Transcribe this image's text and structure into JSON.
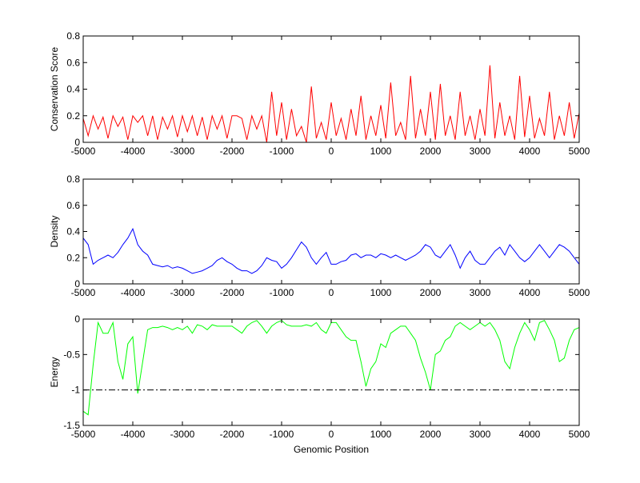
{
  "chart_data": [
    {
      "type": "line",
      "ylabel": "Conservation Score",
      "xlim": [
        -5000,
        5000
      ],
      "ylim": [
        0,
        0.8
      ],
      "xticks": [
        "-5000",
        "-4000",
        "-3000",
        "-2000",
        "-1000",
        "0",
        "1000",
        "2000",
        "3000",
        "4000",
        "5000"
      ],
      "yticks": [
        "0",
        "0.2",
        "0.4",
        "0.6",
        "0.8"
      ],
      "ytick_values": [
        0,
        0.2,
        0.4,
        0.6,
        0.8
      ],
      "color": "#ff0000",
      "x_start": -5000,
      "x_step": 100,
      "values": [
        0.18,
        0.05,
        0.2,
        0.1,
        0.19,
        0.03,
        0.2,
        0.12,
        0.19,
        0.02,
        0.2,
        0.15,
        0.2,
        0.05,
        0.2,
        0.02,
        0.19,
        0.1,
        0.2,
        0.04,
        0.2,
        0.08,
        0.2,
        0.05,
        0.19,
        0.02,
        0.2,
        0.1,
        0.2,
        0.03,
        0.2,
        0.2,
        0.18,
        0.02,
        0.2,
        0.1,
        0.2,
        0.0,
        0.38,
        0.05,
        0.3,
        0.02,
        0.25,
        0.05,
        0.12,
        0.0,
        0.42,
        0.03,
        0.15,
        0.02,
        0.3,
        0.05,
        0.18,
        0.02,
        0.25,
        0.05,
        0.35,
        0.02,
        0.2,
        0.05,
        0.28,
        0.03,
        0.45,
        0.05,
        0.15,
        0.02,
        0.5,
        0.03,
        0.25,
        0.05,
        0.38,
        0.02,
        0.44,
        0.05,
        0.2,
        0.02,
        0.38,
        0.05,
        0.2,
        0.02,
        0.25,
        0.05,
        0.58,
        0.03,
        0.3,
        0.05,
        0.2,
        0.02,
        0.5,
        0.04,
        0.35,
        0.03,
        0.18,
        0.05,
        0.38,
        0.02,
        0.2,
        0.05,
        0.3,
        0.03,
        0.22
      ]
    },
    {
      "type": "line",
      "ylabel": "Density",
      "xlim": [
        -5000,
        5000
      ],
      "ylim": [
        0,
        0.8
      ],
      "xticks": [
        "-5000",
        "-4000",
        "-3000",
        "-2000",
        "-1000",
        "0",
        "1000",
        "2000",
        "3000",
        "4000",
        "5000"
      ],
      "yticks": [
        "0",
        "0.2",
        "0.4",
        "0.6",
        "0.8"
      ],
      "ytick_values": [
        0,
        0.2,
        0.4,
        0.6,
        0.8
      ],
      "color": "#0000ff",
      "x_start": -5000,
      "x_step": 100,
      "values": [
        0.35,
        0.3,
        0.15,
        0.18,
        0.2,
        0.22,
        0.2,
        0.24,
        0.3,
        0.35,
        0.42,
        0.3,
        0.25,
        0.22,
        0.15,
        0.14,
        0.13,
        0.14,
        0.12,
        0.13,
        0.12,
        0.1,
        0.08,
        0.09,
        0.1,
        0.12,
        0.14,
        0.18,
        0.2,
        0.17,
        0.15,
        0.12,
        0.1,
        0.1,
        0.08,
        0.1,
        0.14,
        0.2,
        0.18,
        0.17,
        0.12,
        0.15,
        0.2,
        0.26,
        0.32,
        0.28,
        0.2,
        0.15,
        0.2,
        0.24,
        0.15,
        0.15,
        0.17,
        0.18,
        0.22,
        0.23,
        0.2,
        0.22,
        0.22,
        0.2,
        0.23,
        0.22,
        0.2,
        0.22,
        0.2,
        0.18,
        0.2,
        0.22,
        0.25,
        0.3,
        0.28,
        0.22,
        0.2,
        0.25,
        0.3,
        0.22,
        0.12,
        0.2,
        0.25,
        0.18,
        0.15,
        0.15,
        0.2,
        0.25,
        0.28,
        0.22,
        0.3,
        0.25,
        0.2,
        0.17,
        0.2,
        0.25,
        0.3,
        0.25,
        0.2,
        0.25,
        0.3,
        0.28,
        0.25,
        0.2,
        0.15
      ]
    },
    {
      "type": "line",
      "ylabel": "Energy",
      "xlabel": "Genomic Position",
      "xlim": [
        -5000,
        5000
      ],
      "ylim": [
        -1.5,
        0
      ],
      "xticks": [
        "-5000",
        "-4000",
        "-3000",
        "-2000",
        "-1000",
        "0",
        "1000",
        "2000",
        "3000",
        "4000",
        "5000"
      ],
      "yticks": [
        "-1.5",
        "-1",
        "-0.5",
        "0"
      ],
      "ytick_values": [
        -1.5,
        -1,
        -0.5,
        0
      ],
      "color": "#00ff00",
      "threshold": -1,
      "x_start": -5000,
      "x_step": 100,
      "values": [
        -1.3,
        -1.35,
        -0.65,
        -0.05,
        -0.2,
        -0.2,
        -0.05,
        -0.6,
        -0.85,
        -0.35,
        -0.25,
        -1.05,
        -0.6,
        -0.15,
        -0.12,
        -0.12,
        -0.1,
        -0.12,
        -0.15,
        -0.12,
        -0.15,
        -0.1,
        -0.2,
        -0.08,
        -0.1,
        -0.15,
        -0.08,
        -0.1,
        -0.1,
        -0.1,
        -0.1,
        -0.15,
        -0.2,
        -0.1,
        -0.05,
        -0.02,
        -0.1,
        -0.2,
        -0.1,
        -0.05,
        -0.02,
        -0.08,
        -0.1,
        -0.1,
        -0.1,
        -0.08,
        -0.1,
        -0.05,
        -0.15,
        -0.2,
        -0.05,
        -0.05,
        -0.15,
        -0.25,
        -0.3,
        -0.3,
        -0.6,
        -0.95,
        -0.7,
        -0.6,
        -0.35,
        -0.4,
        -0.2,
        -0.15,
        -0.1,
        -0.1,
        -0.2,
        -0.3,
        -0.55,
        -0.75,
        -1.0,
        -0.5,
        -0.45,
        -0.3,
        -0.25,
        -0.1,
        -0.05,
        -0.1,
        -0.15,
        -0.1,
        -0.05,
        -0.1,
        -0.05,
        -0.15,
        -0.3,
        -0.6,
        -0.7,
        -0.4,
        -0.2,
        -0.05,
        -0.15,
        -0.3,
        -0.05,
        -0.02,
        -0.15,
        -0.3,
        -0.6,
        -0.55,
        -0.3,
        -0.15,
        -0.12
      ]
    }
  ]
}
